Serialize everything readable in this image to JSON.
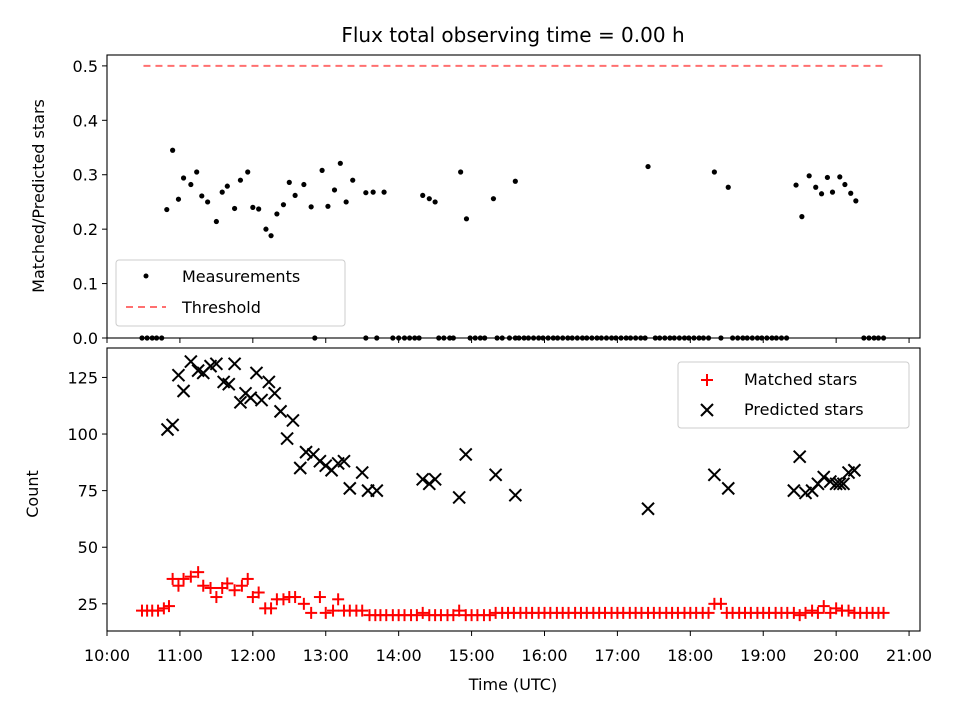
{
  "figure": {
    "title": "Flux total observing time = 0.00 h"
  },
  "chart_data": [
    {
      "type": "scatter",
      "panel": "top",
      "ylabel": "Matched/Predicted stars",
      "ylim": [
        0,
        0.52
      ],
      "yticks": [
        0.0,
        0.1,
        0.2,
        0.3,
        0.4,
        0.5
      ],
      "ytick_labels": [
        "0.0",
        "0.1",
        "0.2",
        "0.3",
        "0.4",
        "0.5"
      ],
      "xlim": [
        10.0,
        21.15
      ],
      "legend_position": "lower-left",
      "legend": [
        {
          "label": "Measurements",
          "marker": "dot",
          "color": "#000000"
        },
        {
          "label": "Threshold",
          "marker": "dashed-line",
          "color": "#ff7070"
        }
      ],
      "threshold": {
        "y": 0.5,
        "x_start": 10.5,
        "x_end": 20.68
      },
      "series": [
        {
          "name": "Measurements",
          "color": "#000000",
          "points": [
            [
              10.82,
              0.236
            ],
            [
              10.9,
              0.345
            ],
            [
              10.98,
              0.255
            ],
            [
              11.05,
              0.294
            ],
            [
              11.15,
              0.282
            ],
            [
              11.23,
              0.305
            ],
            [
              11.3,
              0.261
            ],
            [
              11.38,
              0.25
            ],
            [
              11.5,
              0.214
            ],
            [
              11.58,
              0.268
            ],
            [
              11.65,
              0.279
            ],
            [
              11.75,
              0.238
            ],
            [
              11.83,
              0.29
            ],
            [
              11.93,
              0.305
            ],
            [
              12.0,
              0.24
            ],
            [
              12.08,
              0.237
            ],
            [
              12.18,
              0.2
            ],
            [
              12.25,
              0.188
            ],
            [
              12.33,
              0.228
            ],
            [
              12.42,
              0.245
            ],
            [
              12.5,
              0.286
            ],
            [
              12.58,
              0.262
            ],
            [
              12.7,
              0.282
            ],
            [
              12.8,
              0.241
            ],
            [
              12.95,
              0.308
            ],
            [
              13.03,
              0.242
            ],
            [
              13.12,
              0.272
            ],
            [
              13.2,
              0.321
            ],
            [
              13.28,
              0.25
            ],
            [
              13.37,
              0.29
            ],
            [
              13.55,
              0.267
            ],
            [
              13.65,
              0.268
            ],
            [
              13.8,
              0.268
            ],
            [
              14.33,
              0.262
            ],
            [
              14.42,
              0.256
            ],
            [
              14.5,
              0.25
            ],
            [
              14.85,
              0.305
            ],
            [
              14.93,
              0.219
            ],
            [
              15.3,
              0.256
            ],
            [
              15.6,
              0.288
            ],
            [
              17.42,
              0.315
            ],
            [
              18.33,
              0.305
            ],
            [
              18.52,
              0.277
            ],
            [
              19.45,
              0.281
            ],
            [
              19.53,
              0.223
            ],
            [
              19.63,
              0.298
            ],
            [
              19.72,
              0.277
            ],
            [
              19.8,
              0.265
            ],
            [
              19.88,
              0.295
            ],
            [
              19.95,
              0.268
            ],
            [
              20.05,
              0.296
            ],
            [
              20.12,
              0.282
            ],
            [
              20.2,
              0.266
            ],
            [
              20.27,
              0.252
            ]
          ],
          "zero_points_x": [
            10.48,
            10.55,
            10.62,
            10.68,
            10.75,
            12.85,
            13.55,
            13.7,
            13.92,
            14.0,
            14.08,
            14.15,
            14.22,
            14.28,
            14.55,
            14.62,
            14.7,
            14.75,
            14.98,
            15.05,
            15.12,
            15.18,
            15.35,
            15.42,
            15.52,
            15.6,
            15.65,
            15.72,
            15.78,
            15.85,
            15.92,
            15.98,
            16.05,
            16.12,
            16.18,
            16.25,
            16.32,
            16.38,
            16.45,
            16.52,
            16.58,
            16.65,
            16.72,
            16.78,
            16.85,
            16.92,
            16.98,
            17.05,
            17.12,
            17.18,
            17.25,
            17.32,
            17.38,
            17.52,
            17.58,
            17.65,
            17.72,
            17.78,
            17.85,
            17.92,
            17.98,
            18.05,
            18.12,
            18.18,
            18.25,
            18.42,
            18.58,
            18.65,
            18.72,
            18.78,
            18.85,
            18.92,
            18.98,
            19.05,
            19.12,
            19.18,
            19.25,
            19.32,
            20.38,
            20.45,
            20.52,
            20.58,
            20.65
          ]
        }
      ]
    },
    {
      "type": "scatter",
      "panel": "bottom",
      "ylabel": "Count",
      "xlabel": "Time (UTC)",
      "ylim": [
        13,
        138
      ],
      "yticks": [
        25,
        50,
        75,
        100,
        125
      ],
      "ytick_labels": [
        "25",
        "50",
        "75",
        "100",
        "125"
      ],
      "xlim": [
        10.0,
        21.15
      ],
      "xticks": [
        10,
        11,
        12,
        13,
        14,
        15,
        16,
        17,
        18,
        19,
        20,
        21
      ],
      "xtick_labels": [
        "10:00",
        "11:00",
        "12:00",
        "13:00",
        "14:00",
        "15:00",
        "16:00",
        "17:00",
        "18:00",
        "19:00",
        "20:00",
        "21:00"
      ],
      "legend_position": "upper-right",
      "legend": [
        {
          "label": "Matched stars",
          "marker": "plus",
          "color": "#ff0000"
        },
        {
          "label": "Predicted stars",
          "marker": "x",
          "color": "#000000"
        }
      ],
      "series": [
        {
          "name": "Matched stars",
          "color": "#ff0000",
          "points": [
            [
              10.48,
              22
            ],
            [
              10.55,
              22
            ],
            [
              10.62,
              22
            ],
            [
              10.7,
              22
            ],
            [
              10.78,
              23
            ],
            [
              10.85,
              24
            ],
            [
              10.9,
              36
            ],
            [
              10.98,
              33
            ],
            [
              11.05,
              36
            ],
            [
              11.15,
              37
            ],
            [
              11.25,
              39
            ],
            [
              11.32,
              33
            ],
            [
              11.42,
              32
            ],
            [
              11.5,
              28
            ],
            [
              11.58,
              32
            ],
            [
              11.65,
              34
            ],
            [
              11.75,
              31
            ],
            [
              11.85,
              33
            ],
            [
              11.93,
              36
            ],
            [
              12.0,
              28
            ],
            [
              12.08,
              30
            ],
            [
              12.17,
              23
            ],
            [
              12.25,
              23
            ],
            [
              12.33,
              27
            ],
            [
              12.42,
              27
            ],
            [
              12.5,
              28
            ],
            [
              12.58,
              28
            ],
            [
              12.7,
              25
            ],
            [
              12.8,
              21
            ],
            [
              12.92,
              28
            ],
            [
              13.0,
              21
            ],
            [
              13.1,
              22
            ],
            [
              13.17,
              27
            ],
            [
              13.25,
              22
            ],
            [
              13.33,
              22
            ],
            [
              13.42,
              22
            ],
            [
              13.5,
              22
            ],
            [
              13.6,
              20
            ],
            [
              13.68,
              20
            ],
            [
              13.75,
              20
            ],
            [
              13.83,
              20
            ],
            [
              13.92,
              20
            ],
            [
              14.0,
              20
            ],
            [
              14.08,
              20
            ],
            [
              14.17,
              20
            ],
            [
              14.25,
              20
            ],
            [
              14.33,
              21
            ],
            [
              14.42,
              20
            ],
            [
              14.5,
              20
            ],
            [
              14.58,
              20
            ],
            [
              14.67,
              20
            ],
            [
              14.75,
              20
            ],
            [
              14.83,
              22
            ],
            [
              14.92,
              20
            ],
            [
              15.0,
              20
            ],
            [
              15.08,
              20
            ],
            [
              15.17,
              20
            ],
            [
              15.25,
              20
            ],
            [
              15.33,
              21
            ],
            [
              15.42,
              21
            ],
            [
              15.5,
              21
            ],
            [
              15.58,
              21
            ],
            [
              15.67,
              21
            ],
            [
              15.75,
              21
            ],
            [
              15.83,
              21
            ],
            [
              15.92,
              21
            ],
            [
              16.0,
              21
            ],
            [
              16.08,
              21
            ],
            [
              16.17,
              21
            ],
            [
              16.25,
              21
            ],
            [
              16.33,
              21
            ],
            [
              16.42,
              21
            ],
            [
              16.5,
              21
            ],
            [
              16.58,
              21
            ],
            [
              16.67,
              21
            ],
            [
              16.75,
              21
            ],
            [
              16.83,
              21
            ],
            [
              16.92,
              21
            ],
            [
              17.0,
              21
            ],
            [
              17.08,
              21
            ],
            [
              17.17,
              21
            ],
            [
              17.25,
              21
            ],
            [
              17.33,
              21
            ],
            [
              17.42,
              21
            ],
            [
              17.5,
              21
            ],
            [
              17.58,
              21
            ],
            [
              17.67,
              21
            ],
            [
              17.75,
              21
            ],
            [
              17.83,
              21
            ],
            [
              17.92,
              21
            ],
            [
              18.0,
              21
            ],
            [
              18.08,
              21
            ],
            [
              18.17,
              21
            ],
            [
              18.25,
              21
            ],
            [
              18.33,
              25
            ],
            [
              18.42,
              25
            ],
            [
              18.5,
              21
            ],
            [
              18.58,
              21
            ],
            [
              18.67,
              21
            ],
            [
              18.75,
              21
            ],
            [
              18.83,
              21
            ],
            [
              18.92,
              21
            ],
            [
              19.0,
              21
            ],
            [
              19.08,
              21
            ],
            [
              19.17,
              21
            ],
            [
              19.25,
              21
            ],
            [
              19.33,
              21
            ],
            [
              19.42,
              21
            ],
            [
              19.5,
              20
            ],
            [
              19.58,
              21
            ],
            [
              19.67,
              22
            ],
            [
              19.75,
              21
            ],
            [
              19.83,
              24
            ],
            [
              19.92,
              21
            ],
            [
              20.0,
              23
            ],
            [
              20.08,
              22
            ],
            [
              20.17,
              22
            ],
            [
              20.25,
              21
            ],
            [
              20.33,
              21
            ],
            [
              20.42,
              21
            ],
            [
              20.5,
              21
            ],
            [
              20.58,
              21
            ],
            [
              20.65,
              21
            ]
          ]
        },
        {
          "name": "Predicted stars",
          "color": "#000000",
          "points": [
            [
              10.83,
              102
            ],
            [
              10.9,
              104
            ],
            [
              10.98,
              126
            ],
            [
              11.05,
              119
            ],
            [
              11.15,
              132
            ],
            [
              11.25,
              128
            ],
            [
              11.32,
              127
            ],
            [
              11.42,
              130
            ],
            [
              11.5,
              131
            ],
            [
              11.6,
              123
            ],
            [
              11.67,
              122
            ],
            [
              11.75,
              131
            ],
            [
              11.83,
              114
            ],
            [
              11.9,
              118
            ],
            [
              11.97,
              116
            ],
            [
              12.05,
              127
            ],
            [
              12.12,
              115
            ],
            [
              12.22,
              123
            ],
            [
              12.3,
              118
            ],
            [
              12.38,
              110
            ],
            [
              12.47,
              98
            ],
            [
              12.55,
              106
            ],
            [
              12.65,
              85
            ],
            [
              12.73,
              92
            ],
            [
              12.83,
              91
            ],
            [
              12.92,
              88
            ],
            [
              13.0,
              86
            ],
            [
              13.08,
              84
            ],
            [
              13.17,
              87
            ],
            [
              13.25,
              88
            ],
            [
              13.33,
              76
            ],
            [
              13.5,
              83
            ],
            [
              13.58,
              75
            ],
            [
              13.7,
              75
            ],
            [
              14.33,
              80
            ],
            [
              14.42,
              78
            ],
            [
              14.5,
              80
            ],
            [
              14.83,
              72
            ],
            [
              14.92,
              91
            ],
            [
              15.33,
              82
            ],
            [
              15.6,
              73
            ],
            [
              17.42,
              67
            ],
            [
              18.33,
              82
            ],
            [
              18.52,
              76
            ],
            [
              19.42,
              75
            ],
            [
              19.5,
              90
            ],
            [
              19.58,
              74
            ],
            [
              19.67,
              75
            ],
            [
              19.75,
              78
            ],
            [
              19.83,
              81
            ],
            [
              19.92,
              79
            ],
            [
              20.0,
              78
            ],
            [
              20.05,
              78
            ],
            [
              20.1,
              78
            ],
            [
              20.17,
              83
            ],
            [
              20.25,
              84
            ]
          ]
        }
      ]
    }
  ]
}
